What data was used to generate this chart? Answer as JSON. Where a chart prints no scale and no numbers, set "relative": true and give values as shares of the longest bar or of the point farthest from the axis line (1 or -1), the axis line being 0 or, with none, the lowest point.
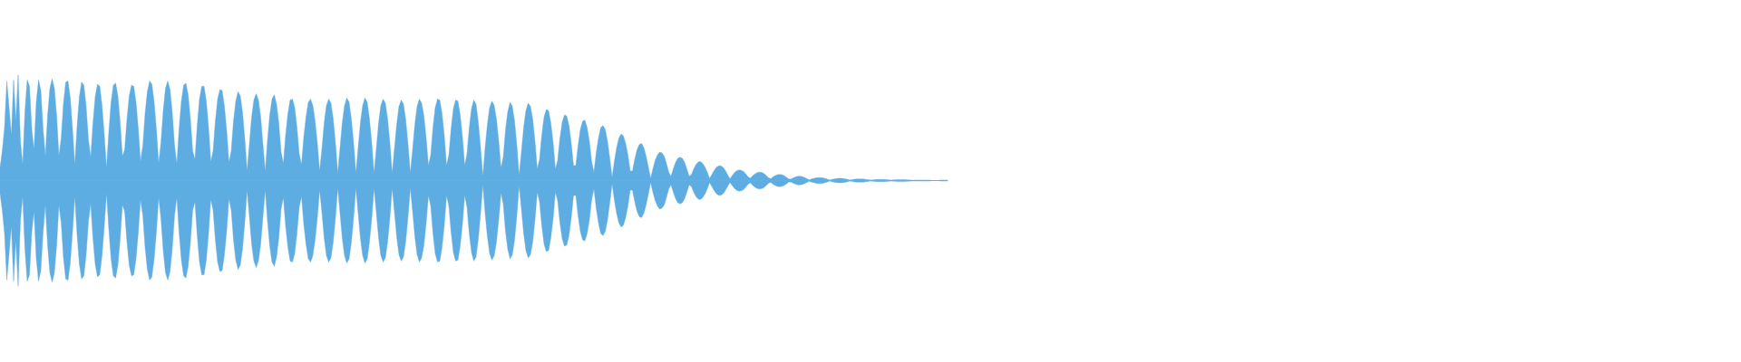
{
  "chart_data": {
    "type": "area",
    "relative": true,
    "categories": [
      null,
      null,
      null,
      null,
      null,
      null,
      null,
      null,
      null,
      null,
      null,
      null,
      null,
      null,
      null,
      null,
      null,
      null,
      null,
      null,
      null,
      null,
      null,
      null,
      null,
      null,
      null,
      null,
      null,
      null,
      null,
      null,
      null,
      null,
      null,
      null,
      null,
      null,
      null,
      null,
      null,
      null,
      null,
      null,
      null,
      null,
      null,
      null,
      null,
      null,
      null,
      null,
      null,
      null,
      null,
      null,
      null,
      null,
      null,
      null,
      null,
      null,
      null,
      null,
      null,
      null,
      null,
      null,
      null,
      null,
      null,
      null,
      null,
      null,
      null,
      null,
      null,
      null,
      null,
      null,
      null,
      null,
      null,
      null,
      null,
      null,
      null,
      null,
      null,
      null,
      null,
      null,
      null,
      null,
      null,
      null,
      null,
      null,
      null,
      null,
      null,
      null,
      null,
      null,
      null,
      null,
      null,
      null,
      null,
      null,
      null,
      null,
      null,
      null,
      null,
      null,
      null,
      null,
      null,
      null,
      null,
      null,
      null,
      null,
      null,
      null,
      null,
      null,
      null,
      null,
      null,
      null,
      null,
      null,
      null,
      null,
      null,
      null,
      null,
      null,
      null,
      null,
      null,
      null,
      null,
      null,
      null,
      null,
      null,
      null,
      null,
      null,
      null,
      null,
      null,
      null,
      null,
      null,
      null,
      null,
      null,
      null,
      null,
      null,
      null,
      null,
      null,
      null,
      null,
      null,
      null,
      null,
      null,
      null,
      null,
      null,
      null,
      null,
      null,
      null,
      null,
      null,
      null,
      null,
      null,
      null,
      null,
      null,
      null,
      null,
      null,
      null,
      null,
      null,
      null,
      null,
      null,
      null,
      null,
      null,
      null,
      null,
      null,
      null,
      null,
      null,
      null,
      null,
      null,
      null,
      null,
      null,
      null,
      null,
      null,
      null,
      null,
      null,
      null,
      null,
      null,
      null,
      null,
      null,
      null,
      null,
      null,
      null,
      null,
      null,
      null,
      null,
      null,
      null,
      null,
      null,
      null,
      null,
      null,
      null,
      null,
      null,
      null,
      null,
      null,
      null,
      null,
      null,
      null,
      null,
      null,
      null,
      null,
      null,
      null,
      null,
      null,
      null,
      null,
      null,
      null,
      null,
      null,
      null,
      null,
      null,
      null,
      null,
      null,
      null,
      null,
      null,
      null,
      null,
      null,
      null,
      null,
      null,
      null,
      null,
      null,
      null,
      null,
      null,
      null,
      null,
      null,
      null,
      null,
      null,
      null,
      null,
      null,
      null,
      null,
      null,
      null,
      null,
      null,
      null,
      null,
      null,
      null,
      null,
      null,
      null,
      null,
      null,
      null,
      null,
      null,
      null,
      null,
      null,
      null,
      null,
      null,
      null,
      null,
      null,
      null,
      null,
      null,
      null,
      null,
      null,
      null,
      null,
      null,
      null,
      null,
      null,
      null,
      null,
      null,
      null,
      null,
      null,
      null,
      null,
      null,
      null,
      null,
      null,
      null,
      null,
      null,
      null,
      null,
      null,
      null,
      null,
      null,
      null,
      null,
      null,
      null,
      null,
      null,
      null,
      null,
      null,
      null,
      null,
      null,
      null,
      null,
      null,
      null,
      null,
      null,
      null,
      null,
      null,
      null,
      null,
      null,
      null,
      null,
      null,
      null,
      null,
      null,
      null,
      null,
      null,
      null,
      null,
      null,
      null,
      null,
      null,
      null,
      null,
      null,
      null,
      null,
      null,
      null,
      null,
      null,
      null,
      null,
      null,
      null,
      null,
      null,
      null,
      null,
      null,
      null,
      null,
      null,
      null,
      null,
      null,
      null,
      null,
      null
    ],
    "series": [
      {
        "color": "#5dade2",
        "values": [
          0.12,
          0.28,
          0.5,
          0.94,
          0.69,
          0.43,
          0.95,
          0.56,
          1.0,
          0.38,
          0.15,
          0.65,
          0.95,
          0.89,
          0.49,
          0.29,
          0.74,
          0.95,
          0.85,
          0.49,
          0.23,
          0.61,
          0.87,
          0.96,
          0.87,
          0.61,
          0.23,
          0.4,
          0.73,
          0.93,
          0.94,
          0.78,
          0.48,
          0.15,
          0.51,
          0.79,
          0.93,
          0.9,
          0.7,
          0.39,
          0.22,
          0.54,
          0.79,
          0.91,
          0.89,
          0.71,
          0.43,
          0.12,
          0.46,
          0.74,
          0.9,
          0.92,
          0.8,
          0.55,
          0.23,
          0.29,
          0.58,
          0.8,
          0.9,
          0.89,
          0.74,
          0.49,
          0.18,
          0.33,
          0.63,
          0.84,
          0.94,
          0.91,
          0.74,
          0.48,
          0.16,
          0.36,
          0.66,
          0.87,
          0.94,
          0.86,
          0.64,
          0.33,
          0.16,
          0.49,
          0.75,
          0.9,
          0.92,
          0.81,
          0.58,
          0.28,
          0.2,
          0.52,
          0.77,
          0.89,
          0.89,
          0.75,
          0.5,
          0.18,
          0.28,
          0.56,
          0.77,
          0.86,
          0.85,
          0.7,
          0.47,
          0.17,
          0.28,
          0.56,
          0.75,
          0.84,
          0.8,
          0.64,
          0.39,
          0.09,
          0.34,
          0.6,
          0.76,
          0.82,
          0.76,
          0.6,
          0.34,
          0.09,
          0.38,
          0.62,
          0.77,
          0.81,
          0.72,
          0.54,
          0.27,
          0.16,
          0.43,
          0.63,
          0.76,
          0.77,
          0.69,
          0.5,
          0.25,
          0.15,
          0.41,
          0.6,
          0.74,
          0.77,
          0.71,
          0.56,
          0.35,
          0.09,
          0.3,
          0.54,
          0.71,
          0.77,
          0.73,
          0.58,
          0.35,
          0.07,
          0.31,
          0.55,
          0.71,
          0.78,
          0.74,
          0.58,
          0.35,
          0.07,
          0.31,
          0.55,
          0.71,
          0.78,
          0.74,
          0.58,
          0.35,
          0.07,
          0.3,
          0.54,
          0.71,
          0.77,
          0.73,
          0.58,
          0.35,
          0.07,
          0.3,
          0.53,
          0.7,
          0.76,
          0.72,
          0.57,
          0.34,
          0.07,
          0.29,
          0.53,
          0.7,
          0.77,
          0.73,
          0.61,
          0.4,
          0.14,
          0.24,
          0.5,
          0.69,
          0.77,
          0.76,
          0.63,
          0.42,
          0.14,
          0.24,
          0.49,
          0.68,
          0.76,
          0.75,
          0.62,
          0.41,
          0.14,
          0.25,
          0.5,
          0.68,
          0.76,
          0.72,
          0.55,
          0.31,
          0.04,
          0.31,
          0.53,
          0.69,
          0.75,
          0.71,
          0.58,
          0.37,
          0.12,
          0.22,
          0.48,
          0.65,
          0.74,
          0.7,
          0.56,
          0.33,
          0.05,
          0.27,
          0.5,
          0.66,
          0.73,
          0.7,
          0.58,
          0.37,
          0.11,
          0.2,
          0.43,
          0.6,
          0.67,
          0.66,
          0.54,
          0.36,
          0.11,
          0.19,
          0.4,
          0.55,
          0.62,
          0.61,
          0.52,
          0.35,
          0.14,
          0.14,
          0.33,
          0.48,
          0.56,
          0.57,
          0.5,
          0.37,
          0.18,
          0.08,
          0.26,
          0.4,
          0.5,
          0.52,
          0.48,
          0.37,
          0.21,
          0.03,
          0.18,
          0.31,
          0.4,
          0.44,
          0.42,
          0.35,
          0.24,
          0.09,
          0.09,
          0.2,
          0.29,
          0.34,
          0.35,
          0.31,
          0.23,
          0.13,
          0.02,
          0.11,
          0.19,
          0.24,
          0.27,
          0.26,
          0.23,
          0.16,
          0.08,
          0.04,
          0.11,
          0.17,
          0.21,
          0.22,
          0.21,
          0.17,
          0.11,
          0.04,
          0.056,
          0.11,
          0.15,
          0.175,
          0.18,
          0.16,
          0.127,
          0.078,
          0.02,
          0.055,
          0.095,
          0.124,
          0.138,
          0.138,
          0.123,
          0.093,
          0.054,
          0.017,
          0.048,
          0.074,
          0.092,
          0.1,
          0.097,
          0.085,
          0.063,
          0.035,
          0.022,
          0.044,
          0.063,
          0.075,
          0.08,
          0.077,
          0.066,
          0.048,
          0.026,
          0.017,
          0.034,
          0.047,
          0.056,
          0.058,
          0.054,
          0.045,
          0.03,
          0.013,
          0.014,
          0.026,
          0.035,
          0.04,
          0.041,
          0.036,
          0.028,
          0.017,
          0.006,
          0.014,
          0.02,
          0.025,
          0.028,
          0.028,
          0.025,
          0.02,
          0.013,
          0.005,
          0.01,
          0.015,
          0.019,
          0.021,
          0.021,
          0.019,
          0.015,
          0.01,
          0.005,
          0.009,
          0.012,
          0.014,
          0.015,
          0.015,
          0.014,
          0.011,
          0.008,
          0.005,
          0.007,
          0.009,
          0.01,
          0.011,
          0.011,
          0.01,
          0.009,
          0.007,
          0.005,
          0.006,
          0.007,
          0.008,
          0.009,
          0.009,
          0.008,
          0.007,
          0.006,
          0.004,
          0.004,
          0.005,
          0.005,
          0.005,
          0.005,
          0.005,
          0.005,
          0.005,
          0,
          0,
          0,
          0,
          0.005,
          0.005,
          0.005,
          0.005
        ]
      },
      {
        "color": "#5eade2",
        "values": [
          -0.12,
          -0.28,
          -0.5,
          -0.94,
          -0.69,
          -0.43,
          -0.95,
          -0.56,
          -1.0,
          -0.38,
          -0.15,
          -0.65,
          -0.95,
          -0.89,
          -0.49,
          -0.29,
          -0.74,
          -0.95,
          -0.85,
          -0.49,
          -0.23,
          -0.61,
          -0.87,
          -0.96,
          -0.87,
          -0.61,
          -0.23,
          -0.4,
          -0.73,
          -0.93,
          -0.94,
          -0.78,
          -0.48,
          -0.15,
          -0.51,
          -0.79,
          -0.93,
          -0.9,
          -0.7,
          -0.39,
          -0.22,
          -0.54,
          -0.79,
          -0.91,
          -0.89,
          -0.71,
          -0.43,
          -0.12,
          -0.46,
          -0.74,
          -0.9,
          -0.92,
          -0.8,
          -0.55,
          -0.23,
          -0.29,
          -0.58,
          -0.8,
          -0.9,
          -0.89,
          -0.74,
          -0.49,
          -0.18,
          -0.33,
          -0.63,
          -0.84,
          -0.94,
          -0.91,
          -0.74,
          -0.48,
          -0.16,
          -0.36,
          -0.66,
          -0.87,
          -0.94,
          -0.86,
          -0.64,
          -0.33,
          -0.16,
          -0.49,
          -0.75,
          -0.9,
          -0.92,
          -0.81,
          -0.58,
          -0.28,
          -0.2,
          -0.52,
          -0.77,
          -0.89,
          -0.89,
          -0.75,
          -0.5,
          -0.18,
          -0.28,
          -0.56,
          -0.77,
          -0.86,
          -0.85,
          -0.7,
          -0.47,
          -0.17,
          -0.28,
          -0.56,
          -0.75,
          -0.84,
          -0.8,
          -0.64,
          -0.39,
          -0.09,
          -0.34,
          -0.6,
          -0.76,
          -0.82,
          -0.76,
          -0.6,
          -0.34,
          -0.09,
          -0.38,
          -0.62,
          -0.77,
          -0.81,
          -0.72,
          -0.54,
          -0.27,
          -0.16,
          -0.43,
          -0.63,
          -0.76,
          -0.77,
          -0.69,
          -0.5,
          -0.25,
          -0.15,
          -0.41,
          -0.6,
          -0.74,
          -0.77,
          -0.71,
          -0.56,
          -0.35,
          -0.09,
          -0.3,
          -0.54,
          -0.71,
          -0.77,
          -0.73,
          -0.58,
          -0.35,
          -0.07,
          -0.31,
          -0.55,
          -0.71,
          -0.78,
          -0.74,
          -0.58,
          -0.35,
          -0.07,
          -0.31,
          -0.55,
          -0.71,
          -0.78,
          -0.74,
          -0.58,
          -0.35,
          -0.07,
          -0.3,
          -0.54,
          -0.71,
          -0.77,
          -0.73,
          -0.58,
          -0.35,
          -0.07,
          -0.3,
          -0.53,
          -0.7,
          -0.76,
          -0.72,
          -0.57,
          -0.34,
          -0.07,
          -0.29,
          -0.53,
          -0.7,
          -0.77,
          -0.73,
          -0.61,
          -0.4,
          -0.14,
          -0.24,
          -0.5,
          -0.69,
          -0.77,
          -0.76,
          -0.63,
          -0.42,
          -0.14,
          -0.24,
          -0.49,
          -0.68,
          -0.76,
          -0.75,
          -0.62,
          -0.41,
          -0.14,
          -0.25,
          -0.5,
          -0.68,
          -0.76,
          -0.72,
          -0.55,
          -0.31,
          -0.04,
          -0.31,
          -0.53,
          -0.69,
          -0.75,
          -0.71,
          -0.58,
          -0.37,
          -0.12,
          -0.22,
          -0.48,
          -0.65,
          -0.74,
          -0.7,
          -0.56,
          -0.33,
          -0.05,
          -0.27,
          -0.5,
          -0.66,
          -0.73,
          -0.7,
          -0.58,
          -0.37,
          -0.11,
          -0.2,
          -0.43,
          -0.6,
          -0.67,
          -0.66,
          -0.54,
          -0.36,
          -0.11,
          -0.19,
          -0.4,
          -0.55,
          -0.62,
          -0.61,
          -0.52,
          -0.35,
          -0.14,
          -0.14,
          -0.33,
          -0.48,
          -0.56,
          -0.57,
          -0.5,
          -0.37,
          -0.18,
          -0.08,
          -0.26,
          -0.4,
          -0.5,
          -0.52,
          -0.48,
          -0.37,
          -0.21,
          -0.03,
          -0.18,
          -0.31,
          -0.4,
          -0.44,
          -0.42,
          -0.35,
          -0.24,
          -0.09,
          -0.09,
          -0.2,
          -0.29,
          -0.34,
          -0.35,
          -0.31,
          -0.23,
          -0.13,
          -0.02,
          -0.11,
          -0.19,
          -0.24,
          -0.27,
          -0.26,
          -0.23,
          -0.16,
          -0.08,
          -0.04,
          -0.11,
          -0.17,
          -0.21,
          -0.22,
          -0.21,
          -0.17,
          -0.11,
          -0.04,
          -0.056,
          -0.11,
          -0.15,
          -0.175,
          -0.18,
          -0.16,
          -0.127,
          -0.078,
          -0.02,
          -0.055,
          -0.095,
          -0.124,
          -0.138,
          -0.138,
          -0.123,
          -0.093,
          -0.054,
          -0.017,
          -0.048,
          -0.074,
          -0.092,
          -0.1,
          -0.097,
          -0.085,
          -0.063,
          -0.035,
          -0.022,
          -0.044,
          -0.063,
          -0.075,
          -0.08,
          -0.077,
          -0.066,
          -0.048,
          -0.026,
          -0.017,
          -0.034,
          -0.047,
          -0.056,
          -0.058,
          -0.054,
          -0.045,
          -0.03,
          -0.013,
          -0.014,
          -0.026,
          -0.035,
          -0.04,
          -0.041,
          -0.036,
          -0.028,
          -0.017,
          -0.006,
          -0.014,
          -0.02,
          -0.025,
          -0.028,
          -0.028,
          -0.025,
          -0.02,
          -0.013,
          -0.005,
          -0.01,
          -0.015,
          -0.019,
          -0.021,
          -0.021,
          -0.019,
          -0.015,
          -0.01,
          -0.005,
          -0.009,
          -0.012,
          -0.014,
          -0.015,
          -0.015,
          -0.014,
          -0.011,
          -0.008,
          -0.005,
          -0.007,
          -0.009,
          -0.01,
          -0.011,
          -0.011,
          -0.01,
          -0.009,
          -0.007,
          -0.005,
          -0.006,
          -0.007,
          -0.008,
          -0.009,
          -0.009,
          -0.008,
          -0.007,
          -0.006,
          -0.004,
          -0.004,
          -0.005,
          -0.005,
          -0.005,
          -0.005,
          -0.005,
          -0.005,
          -0.005,
          0,
          0,
          0,
          0,
          -0.005,
          -0.005,
          -0.005,
          -0.005
        ]
      }
    ]
  }
}
